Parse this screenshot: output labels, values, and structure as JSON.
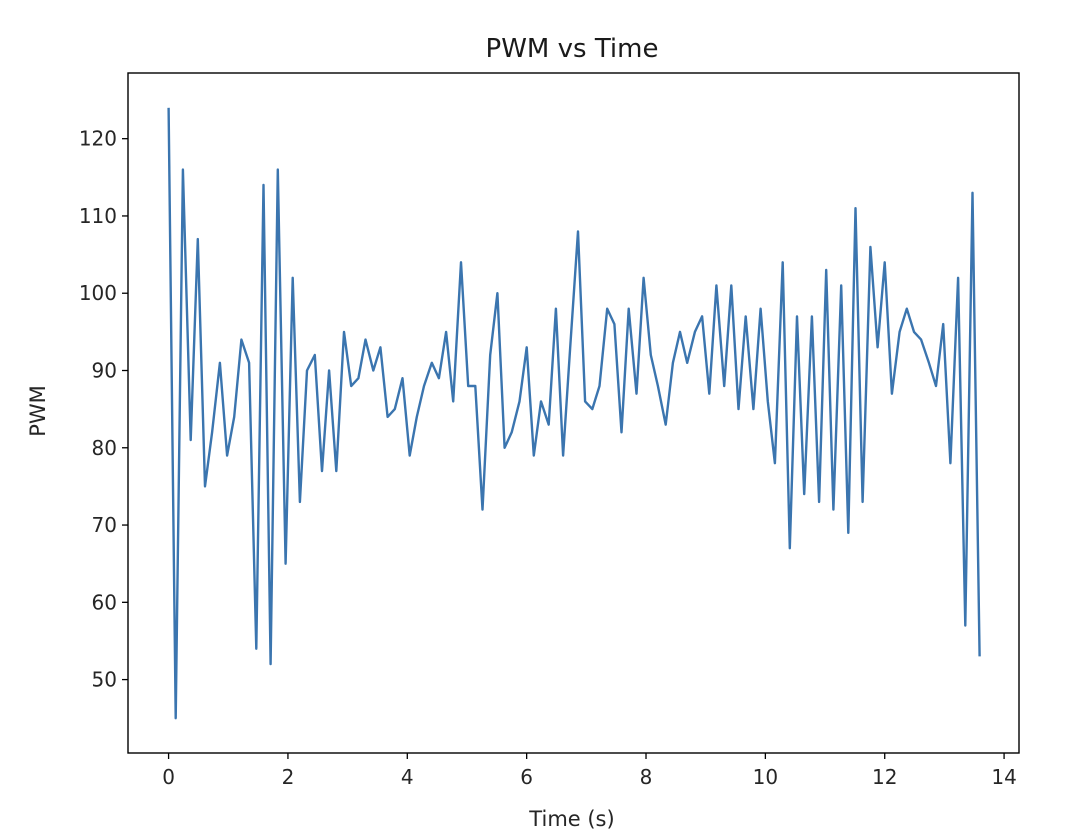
{
  "chart_data": {
    "type": "line",
    "title": "PWM vs Time",
    "xlabel": "Time (s)",
    "ylabel": "PWM",
    "xlim": [
      -0.68,
      14.25
    ],
    "ylim": [
      40.5,
      128.5
    ],
    "xticks": [
      0,
      2,
      4,
      6,
      8,
      10,
      12,
      14
    ],
    "yticks": [
      50,
      60,
      70,
      80,
      90,
      100,
      110,
      120
    ],
    "grid": false,
    "line_color": "#3b75af",
    "series": [
      {
        "x": [
          0.0,
          0.12,
          0.24,
          0.37,
          0.49,
          0.61,
          0.73,
          0.86,
          0.98,
          1.1,
          1.22,
          1.35,
          1.47,
          1.59,
          1.71,
          1.83,
          1.96,
          2.08,
          2.2,
          2.32,
          2.45,
          2.57,
          2.69,
          2.81,
          2.94,
          3.06,
          3.18,
          3.3,
          3.43,
          3.55,
          3.67,
          3.79,
          3.92,
          4.04,
          4.16,
          4.28,
          4.41,
          4.53,
          4.65,
          4.77,
          4.9,
          5.02,
          5.14,
          5.26,
          5.39,
          5.51,
          5.63,
          5.75,
          5.88,
          6.0,
          6.12,
          6.24,
          6.37,
          6.49,
          6.61,
          6.73,
          6.86,
          6.98,
          7.1,
          7.22,
          7.35,
          7.47,
          7.59,
          7.71,
          7.84,
          7.96,
          8.08,
          8.2,
          8.33,
          8.45,
          8.57,
          8.69,
          8.82,
          8.94,
          9.06,
          9.18,
          9.31,
          9.43,
          9.55,
          9.67,
          9.8,
          9.92,
          10.04,
          10.16,
          10.29,
          10.41,
          10.53,
          10.65,
          10.78,
          10.9,
          11.02,
          11.14,
          11.27,
          11.39,
          11.51,
          11.63,
          11.76,
          11.88,
          12.0,
          12.12,
          12.25,
          12.37,
          12.49,
          12.61,
          12.74,
          12.86,
          12.98,
          13.1,
          13.23,
          13.35,
          13.47,
          13.59
        ],
        "y": [
          124,
          45,
          116,
          81,
          107,
          75,
          82,
          91,
          79,
          84,
          94,
          91,
          54,
          114,
          52,
          116,
          65,
          102,
          73,
          90,
          92,
          77,
          90,
          77,
          95,
          88,
          89,
          94,
          90,
          93,
          84,
          85,
          89,
          79,
          84,
          88,
          91,
          89,
          95,
          86,
          104,
          88,
          88,
          72,
          92,
          100,
          80,
          82,
          86,
          93,
          79,
          86,
          83,
          98,
          79,
          93,
          108,
          86,
          85,
          88,
          98,
          96,
          82,
          98,
          87,
          102,
          92,
          88,
          83,
          91,
          95,
          91,
          95,
          97,
          87,
          101,
          88,
          101,
          85,
          97,
          85,
          98,
          86,
          78,
          104,
          67,
          97,
          74,
          97,
          73,
          103,
          72,
          101,
          69,
          111,
          73,
          106,
          93,
          104,
          87,
          95,
          98,
          95,
          94,
          91,
          88,
          96,
          78,
          102,
          57,
          113,
          53
        ]
      }
    ]
  }
}
